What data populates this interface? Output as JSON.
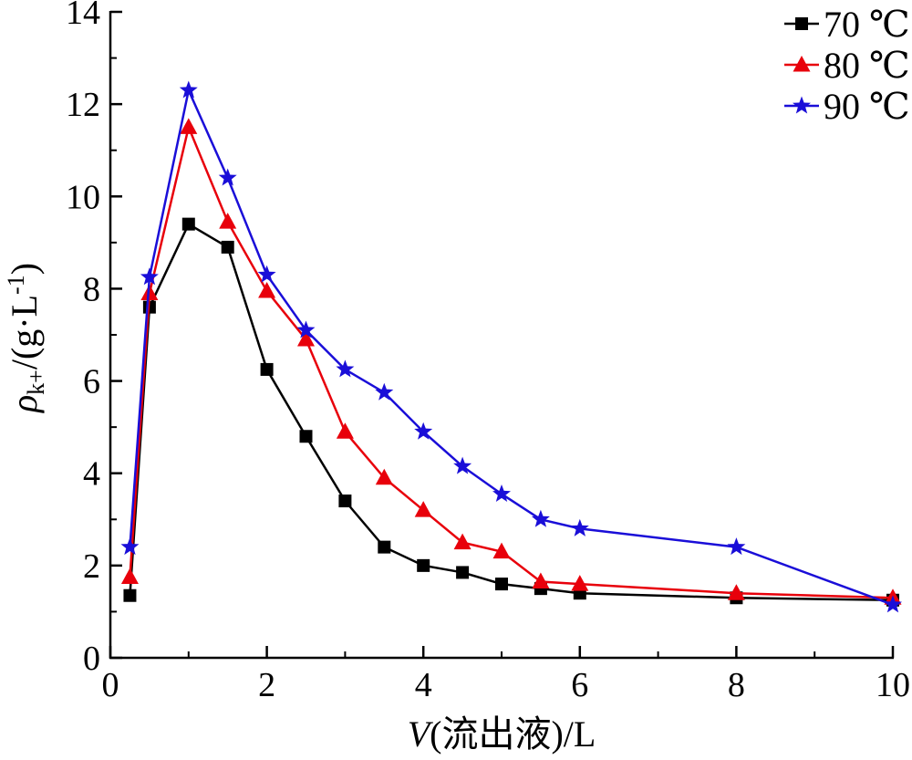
{
  "chart_data": {
    "type": "line",
    "xlabel": "V(流出液)/L",
    "xlabel_parts": {
      "var": "V",
      "rest": "(流出液)/L"
    },
    "ylabel": "ρk+/(g·L-1)",
    "ylabel_parts": {
      "sym": "ρ",
      "sub": "k+",
      "mid": "/(g·L",
      "sup": "-1",
      "end": ")"
    },
    "xlim": [
      0,
      10
    ],
    "ylim": [
      0,
      14
    ],
    "x_ticks": [
      "0",
      "2",
      "4",
      "6",
      "8",
      "10"
    ],
    "y_ticks": [
      "0",
      "2",
      "4",
      "6",
      "8",
      "10",
      "12",
      "14"
    ],
    "grid": false,
    "legend_position": "top-right",
    "series": [
      {
        "name": "70 ℃",
        "color": "#000000",
        "marker": "square",
        "x": [
          0.25,
          0.5,
          1.0,
          1.5,
          2.0,
          2.5,
          3.0,
          3.5,
          4.0,
          4.5,
          5.0,
          5.5,
          6.0,
          8.0,
          10.0
        ],
        "y": [
          1.35,
          7.6,
          9.4,
          8.9,
          6.25,
          4.8,
          3.4,
          2.4,
          2.0,
          1.85,
          1.6,
          1.5,
          1.4,
          1.3,
          1.25
        ]
      },
      {
        "name": "80 ℃",
        "color": "#e8000b",
        "marker": "triangle",
        "x": [
          0.25,
          0.5,
          1.0,
          1.5,
          2.0,
          2.5,
          3.0,
          3.5,
          4.0,
          4.5,
          5.0,
          5.5,
          6.0,
          8.0,
          10.0
        ],
        "y": [
          1.75,
          7.9,
          11.5,
          9.45,
          7.95,
          6.9,
          4.9,
          3.9,
          3.2,
          2.5,
          2.3,
          1.65,
          1.6,
          1.4,
          1.3
        ]
      },
      {
        "name": "90 ℃",
        "color": "#1a0ed8",
        "marker": "star",
        "x": [
          0.25,
          0.5,
          1.0,
          1.5,
          2.0,
          2.5,
          3.0,
          3.5,
          4.0,
          4.5,
          5.0,
          5.5,
          6.0,
          8.0,
          10.0
        ],
        "y": [
          2.4,
          8.25,
          12.3,
          10.4,
          8.3,
          7.1,
          6.25,
          5.75,
          4.9,
          4.15,
          3.55,
          3.0,
          2.8,
          2.4,
          1.15
        ]
      }
    ]
  }
}
